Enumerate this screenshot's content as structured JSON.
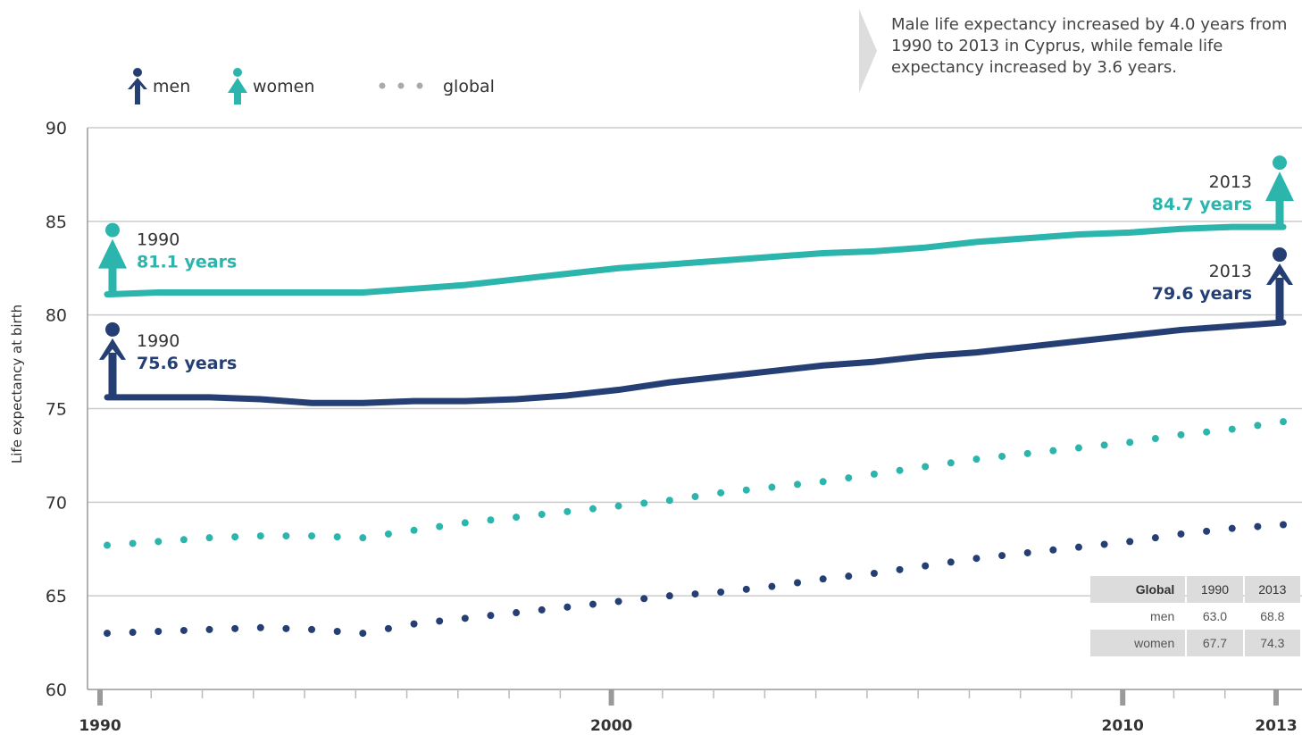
{
  "note": {
    "text": "Male life expectancy increased by 4.0 years from 1990 to 2013 in Cyprus, while female life expectancy increased by 3.6 years."
  },
  "legend": {
    "men": "men",
    "women": "women",
    "global": "global"
  },
  "colors": {
    "men": "#253f74",
    "women": "#2bb5ad",
    "grid": "#cccccc",
    "axis": "#999999"
  },
  "annotations": {
    "men_1990": {
      "year": "1990",
      "value": "75.6 years"
    },
    "women_1990": {
      "year": "1990",
      "value": "81.1 years"
    },
    "men_2013": {
      "year": "2013",
      "value": "79.6 years"
    },
    "women_2013": {
      "year": "2013",
      "value": "84.7 years"
    }
  },
  "global_table": {
    "header": [
      "Global",
      "1990",
      "2013"
    ],
    "rows": [
      {
        "label": "men",
        "v1990": "63.0",
        "v2013": "68.8"
      },
      {
        "label": "women",
        "v1990": "67.7",
        "v2013": "74.3"
      }
    ]
  },
  "chart_data": {
    "type": "line",
    "title": "",
    "xlabel": "",
    "ylabel": "Life expectancy at birth",
    "xlim": [
      1990,
      2013
    ],
    "ylim": [
      60,
      90
    ],
    "y_ticks": [
      60,
      65,
      70,
      75,
      80,
      85,
      90
    ],
    "x_tick_labels": [
      1990,
      2000,
      2010,
      2013
    ],
    "grid": true,
    "legend_position": "top-left",
    "series": [
      {
        "name": "men",
        "style": "solid",
        "x": [
          1990,
          1991,
          1992,
          1993,
          1994,
          1995,
          1996,
          1997,
          1998,
          1999,
          2000,
          2001,
          2002,
          2003,
          2004,
          2005,
          2006,
          2007,
          2008,
          2009,
          2010,
          2011,
          2012,
          2013
        ],
        "y": [
          75.6,
          75.6,
          75.6,
          75.5,
          75.3,
          75.3,
          75.4,
          75.4,
          75.5,
          75.7,
          76.0,
          76.4,
          76.7,
          77.0,
          77.3,
          77.5,
          77.8,
          78.0,
          78.3,
          78.6,
          78.9,
          79.2,
          79.4,
          79.6
        ]
      },
      {
        "name": "women",
        "style": "solid",
        "x": [
          1990,
          1991,
          1992,
          1993,
          1994,
          1995,
          1996,
          1997,
          1998,
          1999,
          2000,
          2001,
          2002,
          2003,
          2004,
          2005,
          2006,
          2007,
          2008,
          2009,
          2010,
          2011,
          2012,
          2013
        ],
        "y": [
          81.1,
          81.2,
          81.2,
          81.2,
          81.2,
          81.2,
          81.4,
          81.6,
          81.9,
          82.2,
          82.5,
          82.7,
          82.9,
          83.1,
          83.3,
          83.4,
          83.6,
          83.9,
          84.1,
          84.3,
          84.4,
          84.6,
          84.7,
          84.7
        ]
      },
      {
        "name": "global men",
        "style": "dotted",
        "x": [
          1990,
          1991,
          1992,
          1993,
          1994,
          1995,
          1996,
          1997,
          1998,
          1999,
          2000,
          2001,
          2002,
          2003,
          2004,
          2005,
          2006,
          2007,
          2008,
          2009,
          2010,
          2011,
          2012,
          2013
        ],
        "y": [
          63.0,
          63.1,
          63.2,
          63.3,
          63.2,
          63.0,
          63.5,
          63.8,
          64.1,
          64.4,
          64.7,
          65.0,
          65.2,
          65.5,
          65.9,
          66.2,
          66.6,
          67.0,
          67.3,
          67.6,
          67.9,
          68.3,
          68.6,
          68.8
        ]
      },
      {
        "name": "global women",
        "style": "dotted",
        "x": [
          1990,
          1991,
          1992,
          1993,
          1994,
          1995,
          1996,
          1997,
          1998,
          1999,
          2000,
          2001,
          2002,
          2003,
          2004,
          2005,
          2006,
          2007,
          2008,
          2009,
          2010,
          2011,
          2012,
          2013
        ],
        "y": [
          67.7,
          67.9,
          68.1,
          68.2,
          68.2,
          68.1,
          68.5,
          68.9,
          69.2,
          69.5,
          69.8,
          70.1,
          70.5,
          70.8,
          71.1,
          71.5,
          71.9,
          72.3,
          72.6,
          72.9,
          73.2,
          73.6,
          73.9,
          74.3
        ]
      }
    ]
  }
}
